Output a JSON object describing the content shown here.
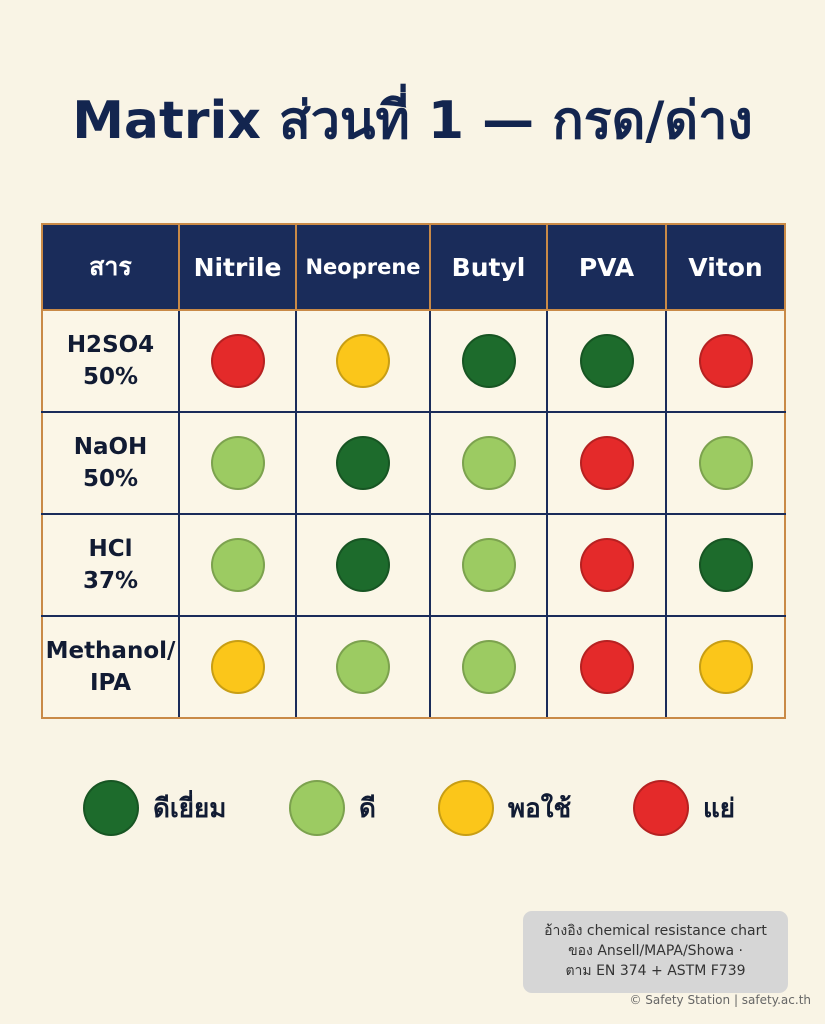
{
  "title": "Matrix ส่วนที่ 1 — กรด/ด่าง",
  "colors": {
    "excellent": "#1d6b2c",
    "good": "#9ccb62",
    "fair": "#fbc61a",
    "poor": "#e42a2a",
    "header_bg": "#1a2c5a",
    "background": "#f9f4e5"
  },
  "chart_data": {
    "type": "table",
    "columns": [
      "สาร",
      "Nitrile",
      "Neoprene",
      "Butyl",
      "PVA",
      "Viton"
    ],
    "rows": [
      {
        "substance": "H2SO4\n50%",
        "ratings": [
          "poor",
          "fair",
          "excellent",
          "excellent",
          "poor"
        ]
      },
      {
        "substance": "NaOH\n50%",
        "ratings": [
          "good",
          "excellent",
          "good",
          "poor",
          "good"
        ]
      },
      {
        "substance": "HCl\n37%",
        "ratings": [
          "good",
          "excellent",
          "good",
          "poor",
          "excellent"
        ]
      },
      {
        "substance": "Methanol/\nIPA",
        "ratings": [
          "fair",
          "good",
          "good",
          "poor",
          "fair"
        ]
      }
    ],
    "legend": [
      {
        "key": "excellent",
        "label": "ดีเยี่ยม"
      },
      {
        "key": "good",
        "label": "ดี"
      },
      {
        "key": "fair",
        "label": "พอใช้"
      },
      {
        "key": "poor",
        "label": "แย่"
      }
    ]
  },
  "note": {
    "lines": [
      "อ้างอิง chemical resistance chart",
      "ของ Ansell/MAPA/Showa ·",
      "ตาม EN 374 + ASTM F739"
    ]
  },
  "credit": "© Safety Station | safety.ac.th"
}
